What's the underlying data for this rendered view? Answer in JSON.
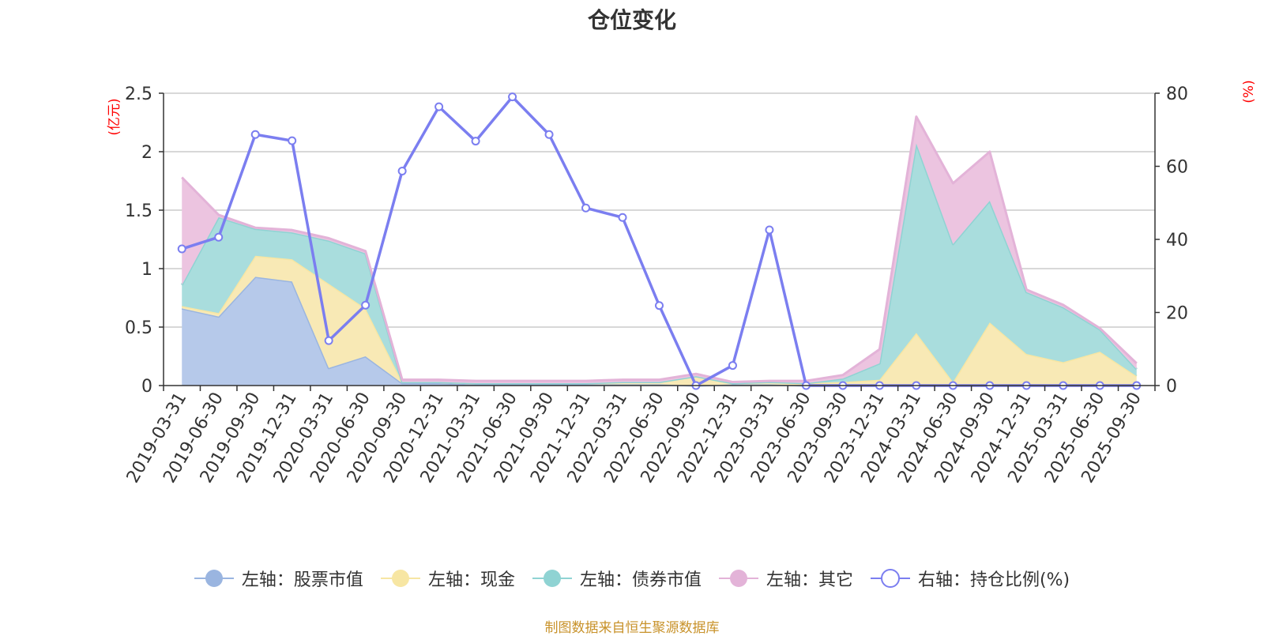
{
  "chart_data": {
    "type": "area",
    "title": "仓位变化",
    "source": "制图数据来自恒生聚源数据库",
    "left_axis": {
      "unit": "(亿元)",
      "ylim": [
        0,
        2.5
      ],
      "ticks": [
        "0",
        "0.5",
        "1",
        "1.5",
        "2",
        "2.5"
      ]
    },
    "right_axis": {
      "unit": "(%)",
      "ylim": [
        0,
        80
      ],
      "ticks": [
        "0",
        "20",
        "40",
        "60",
        "80"
      ]
    },
    "x": [
      "2019-03-31",
      "2019-06-30",
      "2019-09-30",
      "2019-12-31",
      "2020-03-31",
      "2020-06-30",
      "2020-09-30",
      "2020-12-31",
      "2021-03-31",
      "2021-06-30",
      "2021-09-30",
      "2021-12-31",
      "2022-03-31",
      "2022-06-30",
      "2022-09-30",
      "2022-12-31",
      "2023-03-31",
      "2023-06-30",
      "2023-09-30",
      "2023-12-31",
      "2024-03-31",
      "2024-06-30",
      "2024-09-30",
      "2024-12-31",
      "2025-03-31",
      "2025-06-30",
      "2025-09-30"
    ],
    "grid": true,
    "legend_position": "bottom",
    "series": [
      {
        "name": "左轴：股票市值",
        "axis": "left",
        "kind": "stacked-area",
        "color": "#9ab5e0",
        "fill": "#b6c9ea",
        "values": [
          0.66,
          0.59,
          0.93,
          0.89,
          0.15,
          0.25,
          0.02,
          0.02,
          0.01,
          0.01,
          0.01,
          0.01,
          0.01,
          0.01,
          0.0,
          0.01,
          0.01,
          0.0,
          0.0,
          0.0,
          0.0,
          0.0,
          0.0,
          0.0,
          0.0,
          0.0,
          0.0
        ]
      },
      {
        "name": "左轴：现金",
        "axis": "left",
        "kind": "stacked-area",
        "color": "#f7e6a3",
        "fill": "#f8e9b5",
        "values": [
          0.02,
          0.03,
          0.18,
          0.19,
          0.72,
          0.41,
          0.01,
          0.01,
          0.01,
          0.01,
          0.01,
          0.01,
          0.02,
          0.02,
          0.08,
          0.01,
          0.02,
          0.02,
          0.03,
          0.05,
          0.45,
          0.03,
          0.54,
          0.27,
          0.2,
          0.29,
          0.08
        ]
      },
      {
        "name": "左轴：债券市值",
        "axis": "left",
        "kind": "stacked-area",
        "color": "#8fd3d3",
        "fill": "#a9dddd",
        "values": [
          0.18,
          0.82,
          0.23,
          0.23,
          0.37,
          0.47,
          0.0,
          0.0,
          0.0,
          0.0,
          0.0,
          0.0,
          0.0,
          0.0,
          0.0,
          0.0,
          0.0,
          0.0,
          0.03,
          0.14,
          1.62,
          1.18,
          1.04,
          0.53,
          0.47,
          0.19,
          0.06
        ]
      },
      {
        "name": "左轴：其它",
        "axis": "left",
        "kind": "stacked-area",
        "color": "#e3b3d8",
        "fill": "#ecc4e0",
        "values": [
          0.92,
          0.02,
          0.01,
          0.02,
          0.02,
          0.02,
          0.02,
          0.02,
          0.02,
          0.02,
          0.02,
          0.02,
          0.02,
          0.02,
          0.02,
          0.01,
          0.01,
          0.02,
          0.03,
          0.12,
          0.23,
          0.52,
          0.42,
          0.02,
          0.02,
          0.01,
          0.05
        ]
      },
      {
        "name": "右轴：持仓比例(%)",
        "axis": "right",
        "kind": "line",
        "color": "#7b7ef0",
        "values": [
          37.4,
          40.6,
          68.7,
          67.0,
          12.3,
          22.0,
          58.7,
          76.3,
          66.9,
          79.0,
          68.7,
          48.6,
          46.0,
          21.9,
          0.0,
          5.5,
          42.6,
          0.0,
          0.0,
          0.0,
          0.0,
          0.0,
          0.0,
          0.0,
          0.0,
          0.0,
          0.0
        ]
      }
    ]
  }
}
